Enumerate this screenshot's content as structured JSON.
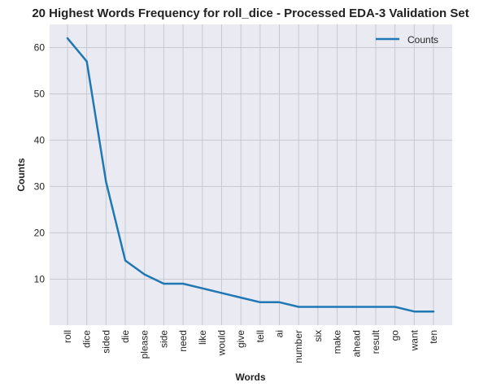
{
  "chart_data": {
    "type": "line",
    "title": "20 Highest Words Frequency for roll_dice - Processed EDA-3 Validation Set",
    "xlabel": "Words",
    "ylabel": "Counts",
    "categories": [
      "roll",
      "dice",
      "sided",
      "die",
      "please",
      "side",
      "need",
      "like",
      "would",
      "give",
      "tell",
      "ai",
      "number",
      "six",
      "make",
      "ahead",
      "result",
      "go",
      "want",
      "ten"
    ],
    "series": [
      {
        "name": "Counts",
        "values": [
          62,
          57,
          31,
          14,
          11,
          9,
          9,
          8,
          7,
          6,
          5,
          5,
          4,
          4,
          4,
          4,
          4,
          4,
          3,
          3
        ]
      }
    ],
    "yticks": [
      10,
      20,
      30,
      40,
      50,
      60
    ],
    "ylim": [
      0.05,
      65
    ],
    "grid": true,
    "legend": "top-right",
    "colors": {
      "line": "#1f77b4",
      "plot_bg": "#eaeaf2",
      "grid": "#c8c8d0"
    }
  }
}
